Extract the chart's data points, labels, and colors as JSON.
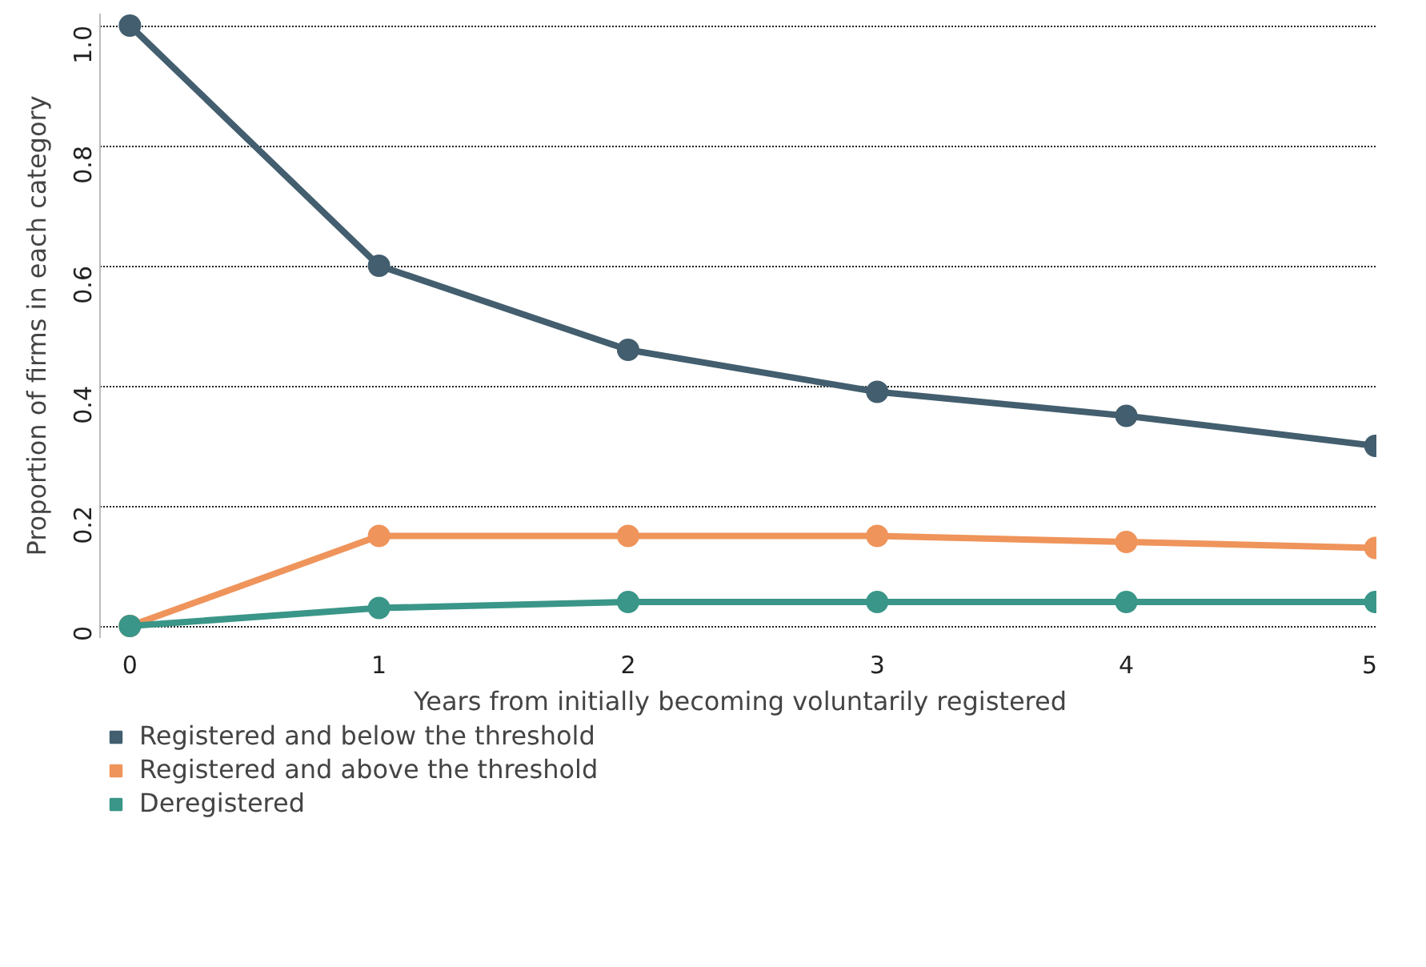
{
  "chart_data": {
    "type": "line",
    "xlabel": "Years from initially becoming voluntarily registered",
    "ylabel": "Proportion of firms in each category",
    "x": [
      0,
      1,
      2,
      3,
      4,
      5
    ],
    "series": [
      {
        "name": "Registered and below the threshold",
        "color": "#435e6e",
        "values": [
          1.0,
          0.6,
          0.46,
          0.39,
          0.35,
          0.3
        ]
      },
      {
        "name": "Registered and above the threshold",
        "color": "#ef945b",
        "values": [
          0,
          0.15,
          0.15,
          0.15,
          0.14,
          0.13
        ]
      },
      {
        "name": "Deregistered",
        "color": "#3a9688",
        "values": [
          0,
          0.03,
          0.04,
          0.04,
          0.04,
          0.04
        ]
      }
    ],
    "xlim": [
      -0.12,
      5.02
    ],
    "ylim": [
      -0.02,
      1.02
    ],
    "xticks": [
      0,
      1,
      2,
      3,
      4,
      5
    ],
    "yticks": [
      0,
      0.2,
      0.4,
      0.6,
      0.8,
      {
        "value": 1,
        "label": "1.0"
      }
    ],
    "grid": "y",
    "legend": "bottom",
    "marker": "circle",
    "line_style": "solid"
  }
}
